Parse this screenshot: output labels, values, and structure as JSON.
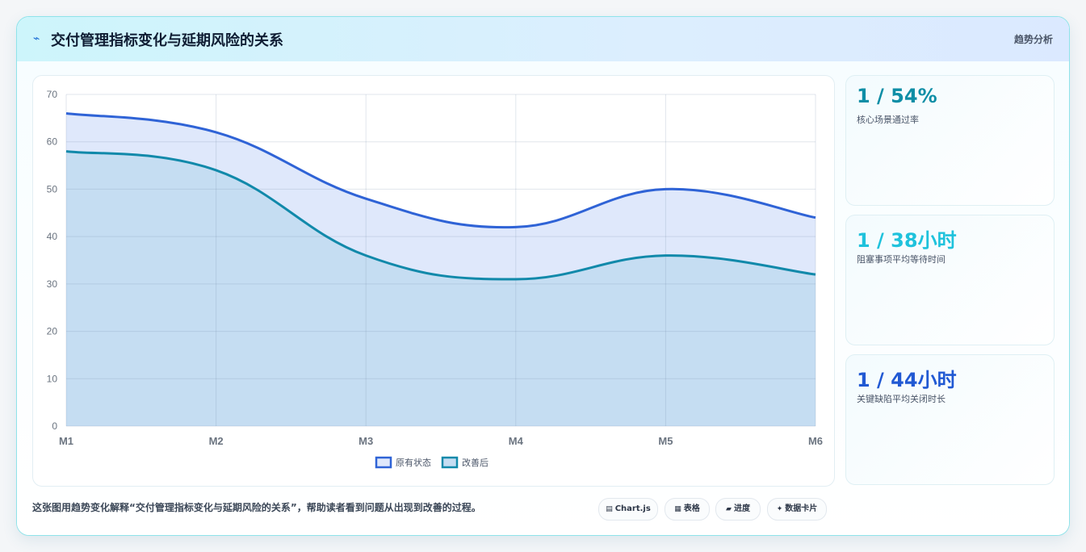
{
  "header": {
    "icon": "sparkline-icon",
    "title": "交付管理指标变化与延期风险的关系",
    "tag": "趋势分析"
  },
  "chart_data": {
    "type": "line",
    "categories": [
      "M1",
      "M2",
      "M3",
      "M4",
      "M5",
      "M6"
    ],
    "series": [
      {
        "name": "原有状态",
        "values": [
          66,
          62,
          48,
          42,
          50,
          44
        ],
        "color": "#2f63d6",
        "fill": "#dfe8fb"
      },
      {
        "name": "改善后",
        "values": [
          58,
          54,
          36,
          31,
          36,
          32
        ],
        "color": "#1189aa",
        "fill": "#c5ddf2"
      }
    ],
    "ylim": [
      0,
      70
    ],
    "yticks": [
      0,
      10,
      20,
      30,
      40,
      50,
      60,
      70
    ],
    "grid": true,
    "area_fill": true,
    "legend_position": "bottom"
  },
  "stats": [
    {
      "value": "1 / 54%",
      "label": "核心场景通过率",
      "color": "#0e8ea6"
    },
    {
      "value": "1 / 38小时",
      "label": "阻塞事项平均等待时间",
      "color": "#1fc2dc"
    },
    {
      "value": "1 / 44小时",
      "label": "关键缺陷平均关闭时长",
      "color": "#2159d3"
    }
  ],
  "caption": "这张图用趋势变化解释“交付管理指标变化与延期风险的关系”，帮助读者看到问题从出现到改善的过程。",
  "chips": [
    {
      "icon": "▤",
      "label": "Chart.js"
    },
    {
      "icon": "▦",
      "label": "表格"
    },
    {
      "icon": "▰",
      "label": "进度"
    },
    {
      "icon": "✦",
      "label": "数据卡片"
    }
  ]
}
